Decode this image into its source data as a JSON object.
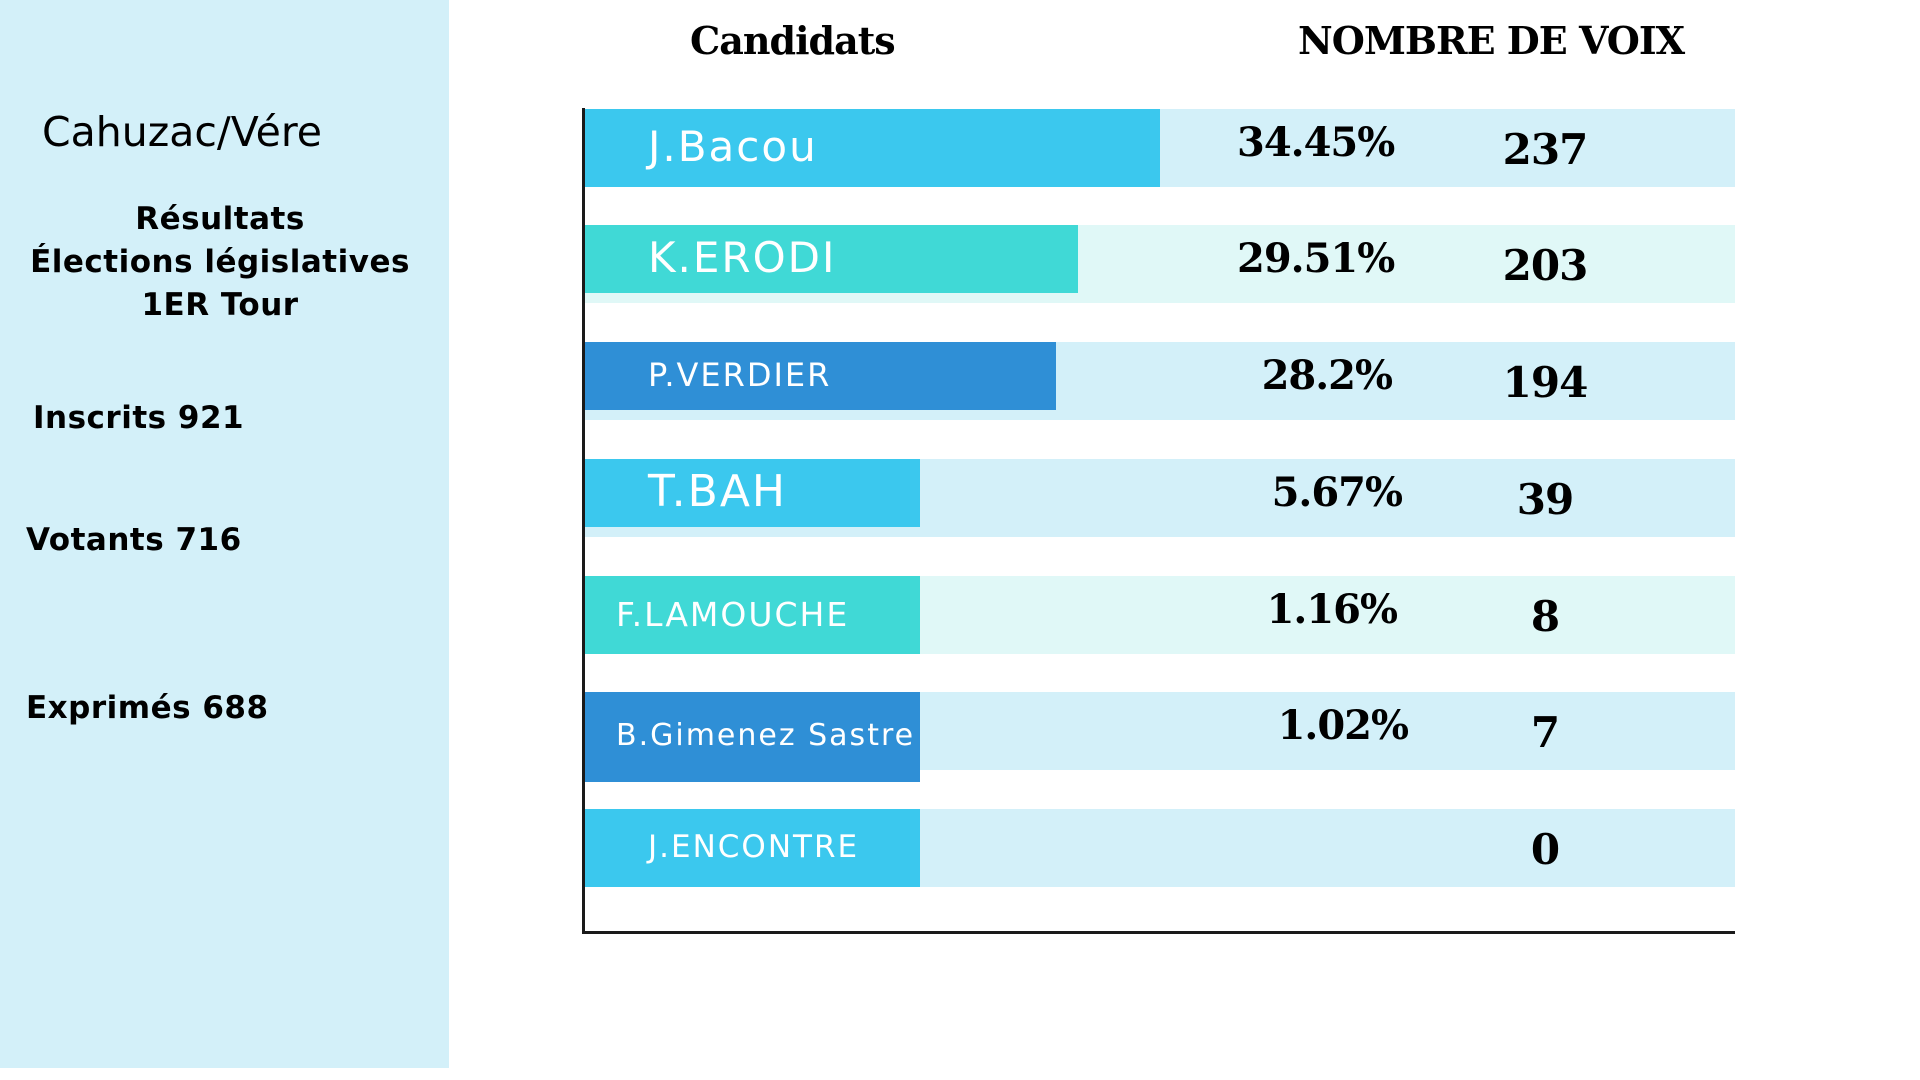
{
  "sidebar": {
    "title": "Cahuzac/Vére",
    "results_lines": [
      "Résultats",
      "Élections  législatives",
      "1ER Tour"
    ],
    "inscrits": "Inscrits 921",
    "votants": "Votants 716",
    "exprimes": "Exprimés  688"
  },
  "headers": {
    "candidats": "Candidats",
    "voix": "NOMBRE DE VOIX"
  },
  "colors": {
    "sidebar_bg": "#d3f0f9",
    "row_bg_blue": "#d3f0f9",
    "row_bg_turquoise": "#e0f8f7",
    "bar_sky": "#3bc8ee",
    "bar_turquoise": "#40d9d6",
    "bar_dark_blue": "#2f8fd6"
  },
  "chart_data": {
    "type": "bar",
    "orientation": "horizontal",
    "categories": [
      "J.Bacou",
      "K.ERODI",
      "P.VERDIER",
      "T.BAH",
      "F.LAMOUCHE",
      "B.Gimenez Sastre",
      "J.ENCONTRE"
    ],
    "series": [
      {
        "values": [
          34.45,
          29.51,
          28.2,
          5.67,
          1.16,
          1.02,
          0
        ],
        "labels": [
          "34.45%",
          "29.51%",
          "28.2%",
          "5.67%",
          "1.16%",
          "1.02%",
          ""
        ]
      },
      {
        "values": [
          237,
          203,
          194,
          39,
          8,
          7,
          0
        ],
        "labels": [
          "237",
          "203",
          "194",
          "39",
          "8",
          "7",
          "0"
        ]
      }
    ],
    "bar_colors": [
      "#3bc8ee",
      "#40d9d6",
      "#2f8fd6",
      "#3bc8ee",
      "#40d9d6",
      "#2f8fd6",
      "#3bc8ee"
    ],
    "row_colors": [
      "#d3f0f9",
      "#e0f8f7",
      "#d3f0f9",
      "#d3f0f9",
      "#e0f8f7",
      "#d3f0f9",
      "#d3f0f9"
    ],
    "title": "",
    "xlabel": "",
    "ylabel": "",
    "legend": "none",
    "grid": false
  }
}
